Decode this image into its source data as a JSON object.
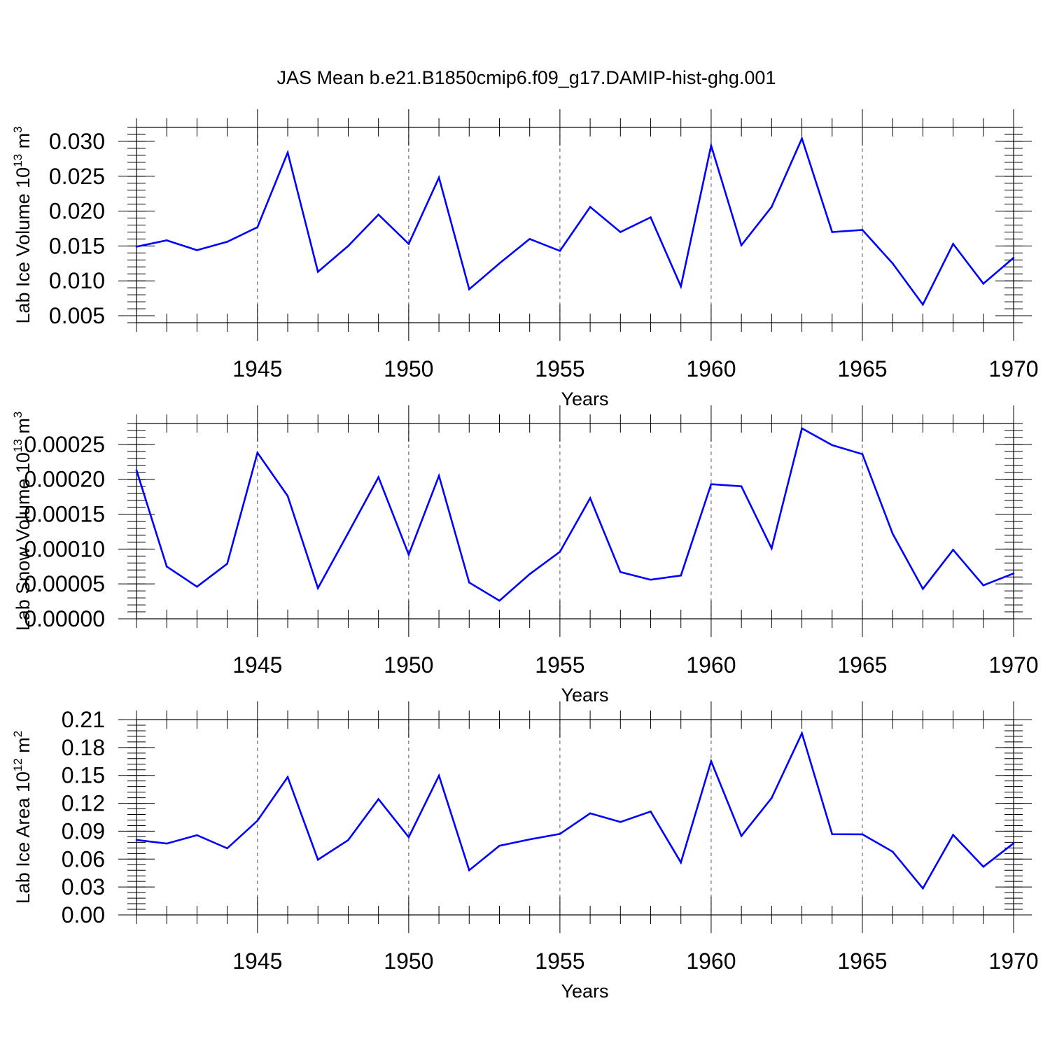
{
  "title": "JAS Mean b.e21.B1850cmip6.f09_g17.DAMIP-hist-ghg.001",
  "line_color": "#0000ff",
  "chart_data": [
    {
      "type": "line",
      "title": "JAS Mean b.e21.B1850cmip6.f09_g17.DAMIP-hist-ghg.001",
      "xlabel": "Years",
      "ylabel": "Lab Ice Volume 10",
      "ylabel_exp": "13",
      "ylabel_unit": " m",
      "ylabel_unit_exp": "3",
      "xlim": [
        1941,
        1970
      ],
      "ylim": [
        0.004,
        0.032
      ],
      "xticks": [
        1945,
        1950,
        1955,
        1960,
        1965,
        1970
      ],
      "xtick_labels": [
        "1945",
        "1950",
        "1955",
        "1960",
        "1965",
        "1970"
      ],
      "yticks": [
        0.005,
        0.01,
        0.015,
        0.02,
        0.025,
        0.03
      ],
      "ytick_labels": [
        "0.005",
        "0.010",
        "0.015",
        "0.020",
        "0.025",
        "0.030"
      ],
      "grid": "vertical dashed at major x ticks",
      "x": [
        1941,
        1942,
        1943,
        1944,
        1945,
        1946,
        1947,
        1948,
        1949,
        1950,
        1951,
        1952,
        1953,
        1954,
        1955,
        1956,
        1957,
        1958,
        1959,
        1960,
        1961,
        1962,
        1963,
        1964,
        1965,
        1966,
        1967,
        1968,
        1969,
        1970
      ],
      "values": [
        0.0149,
        0.0158,
        0.0144,
        0.0156,
        0.0177,
        0.0284,
        0.0113,
        0.015,
        0.0195,
        0.0153,
        0.0248,
        0.0088,
        0.0125,
        0.016,
        0.0143,
        0.0206,
        0.017,
        0.0191,
        0.0092,
        0.0294,
        0.0151,
        0.0206,
        0.0304,
        0.017,
        0.0173,
        0.0125,
        0.0066,
        0.0153,
        0.0096,
        0.0133
      ]
    },
    {
      "type": "line",
      "xlabel": "Years",
      "ylabel": "Lab Snow Volume 10",
      "ylabel_exp": "13",
      "ylabel_unit": " m",
      "ylabel_unit_exp": "3",
      "xlim": [
        1941,
        1970
      ],
      "ylim": [
        0,
        0.00028
      ],
      "xticks": [
        1945,
        1950,
        1955,
        1960,
        1965,
        1970
      ],
      "xtick_labels": [
        "1945",
        "1950",
        "1955",
        "1960",
        "1965",
        "1970"
      ],
      "yticks": [
        0,
        5e-05,
        0.0001,
        0.00015,
        0.0002,
        0.00025
      ],
      "ytick_labels": [
        "0.00000",
        "0.00005",
        "0.00010",
        "0.00015",
        "0.00020",
        "0.00025"
      ],
      "grid": "vertical dashed at major x ticks",
      "x": [
        1941,
        1942,
        1943,
        1944,
        1945,
        1946,
        1947,
        1948,
        1949,
        1950,
        1951,
        1952,
        1953,
        1954,
        1955,
        1956,
        1957,
        1958,
        1959,
        1960,
        1961,
        1962,
        1963,
        1964,
        1965,
        1966,
        1967,
        1968,
        1969,
        1970
      ],
      "values": [
        0.000213,
        7.5e-05,
        4.6e-05,
        7.9e-05,
        0.000238,
        0.000176,
        4.4e-05,
        0.000123,
        0.000203,
        9.2e-05,
        0.000205,
        5.2e-05,
        2.6e-05,
        6.4e-05,
        9.6e-05,
        0.000173,
        6.7e-05,
        5.6e-05,
        6.2e-05,
        0.000193,
        0.00019,
        0.000101,
        0.000273,
        0.000249,
        0.000236,
        0.000122,
        4.3e-05,
        9.9e-05,
        4.8e-05,
        6.5e-05
      ]
    },
    {
      "type": "line",
      "xlabel": "Years",
      "ylabel": "Lab Ice Area 10",
      "ylabel_exp": "12",
      "ylabel_unit": " m",
      "ylabel_unit_exp": "2",
      "xlim": [
        1941,
        1970
      ],
      "ylim": [
        0,
        0.21
      ],
      "xticks": [
        1945,
        1950,
        1955,
        1960,
        1965,
        1970
      ],
      "xtick_labels": [
        "1945",
        "1950",
        "1955",
        "1960",
        "1965",
        "1970"
      ],
      "yticks": [
        0,
        0.03,
        0.06,
        0.09,
        0.12,
        0.15,
        0.18,
        0.21
      ],
      "ytick_labels": [
        "0.00",
        "0.03",
        "0.06",
        "0.09",
        "0.12",
        "0.15",
        "0.18",
        "0.21"
      ],
      "grid": "vertical dashed at major x ticks",
      "x": [
        1941,
        1942,
        1943,
        1944,
        1945,
        1946,
        1947,
        1948,
        1949,
        1950,
        1951,
        1952,
        1953,
        1954,
        1955,
        1956,
        1957,
        1958,
        1959,
        1960,
        1961,
        1962,
        1963,
        1964,
        1965,
        1966,
        1967,
        1968,
        1969,
        1970
      ],
      "values": [
        0.0806,
        0.0767,
        0.0857,
        0.0716,
        0.1013,
        0.1483,
        0.0594,
        0.0804,
        0.1245,
        0.0836,
        0.1497,
        0.048,
        0.0744,
        0.0812,
        0.0871,
        0.1092,
        0.0999,
        0.1112,
        0.0564,
        0.1653,
        0.0849,
        0.1256,
        0.1953,
        0.0868,
        0.0866,
        0.068,
        0.0285,
        0.086,
        0.0518,
        0.077
      ]
    }
  ]
}
